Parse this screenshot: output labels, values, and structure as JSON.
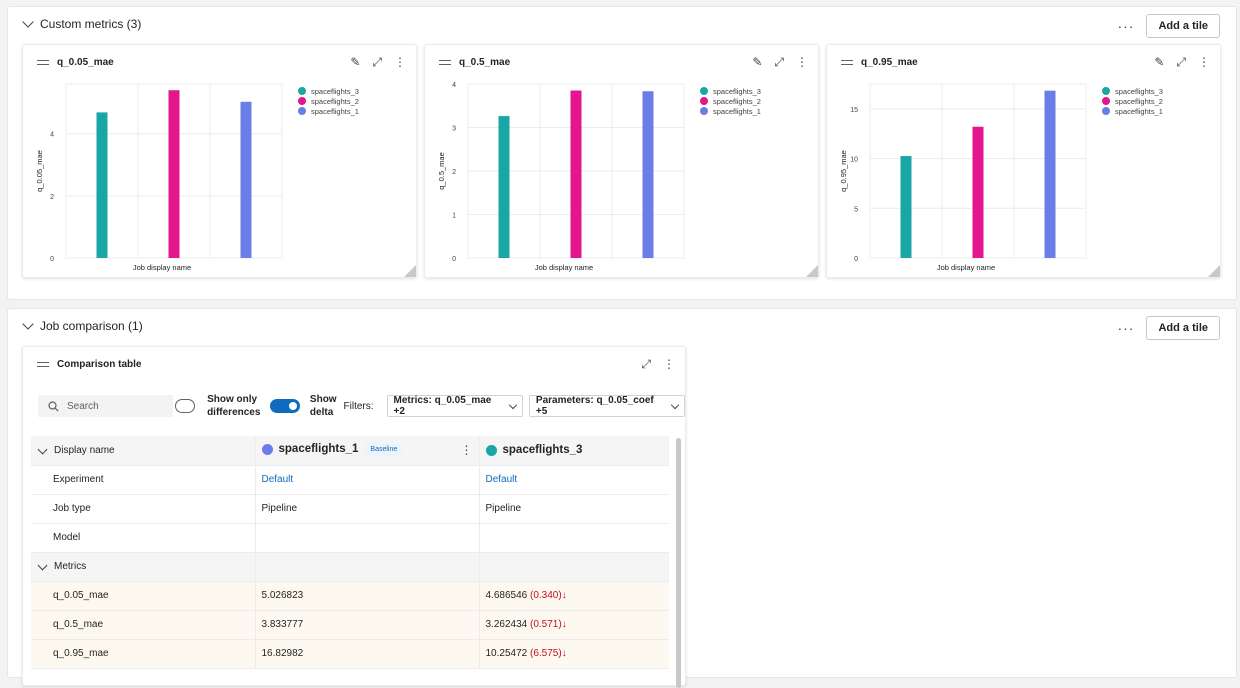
{
  "custom_metrics": {
    "title": "Custom metrics (3)",
    "more": "···",
    "add_tile": "Add a tile"
  },
  "tiles": [
    {
      "title": "q_0.05_mae",
      "chart_data": {
        "type": "bar",
        "title": "q_0.05_mae",
        "xlabel": "Job display name",
        "ylabel": "q_0.05_mae",
        "ylim": [
          0,
          5.6
        ],
        "yticks": [
          "0",
          "2",
          "4"
        ],
        "categories": [
          "spaceflights_3",
          "spaceflights_2",
          "spaceflights_1"
        ],
        "values": [
          4.686546,
          5.4,
          5.026823
        ],
        "colors": [
          "#1aa6a6",
          "#e3168c",
          "#6b7ee8"
        ]
      }
    },
    {
      "title": "q_0.5_mae",
      "chart_data": {
        "type": "bar",
        "title": "q_0.5_mae",
        "xlabel": "Job display name",
        "ylabel": "q_0.5_mae",
        "ylim": [
          0,
          4
        ],
        "yticks": [
          "0",
          "1",
          "2",
          "3",
          "4"
        ],
        "categories": [
          "spaceflights_3",
          "spaceflights_2",
          "spaceflights_1"
        ],
        "values": [
          3.262434,
          3.85,
          3.833777
        ],
        "colors": [
          "#1aa6a6",
          "#e3168c",
          "#6b7ee8"
        ]
      }
    },
    {
      "title": "q_0.95_mae",
      "chart_data": {
        "type": "bar",
        "title": "q_0.95_mae",
        "xlabel": "Job display name",
        "ylabel": "q_0.95_mae",
        "ylim": [
          0,
          17.5
        ],
        "yticks": [
          "0",
          "5",
          "10",
          "15"
        ],
        "categories": [
          "spaceflights_3",
          "spaceflights_2",
          "spaceflights_1"
        ],
        "values": [
          10.25472,
          13.2,
          16.82982
        ],
        "colors": [
          "#1aa6a6",
          "#e3168c",
          "#6b7ee8"
        ]
      }
    }
  ],
  "legend": [
    "spaceflights_3",
    "spaceflights_2",
    "spaceflights_1"
  ],
  "legend_colors": [
    "#1aa6a6",
    "#e3168c",
    "#6b7ee8"
  ],
  "job_comparison": {
    "title": "Job comparison (1)",
    "more": "···",
    "add_tile": "Add a tile"
  },
  "comparison": {
    "title": "Comparison table",
    "search_placeholder": "Search",
    "show_only_differences": "Show only differences",
    "show_delta": "Show delta",
    "filters_label": "Filters:",
    "metrics_filter": "Metrics: q_0.05_mae +2",
    "parameters_filter": "Parameters: q_0.05_coef +5",
    "header": {
      "label": "Display name",
      "run1": "spaceflights_1",
      "run1_badge": "Baseline",
      "run1_color": "#6b7ee8",
      "run2": "spaceflights_3",
      "run2_color": "#1aa6a6"
    },
    "rows": {
      "experiment": {
        "label": "Experiment",
        "v1": "Default",
        "v2": "Default"
      },
      "job_type": {
        "label": "Job type",
        "v1": "Pipeline",
        "v2": "Pipeline"
      },
      "model": {
        "label": "Model",
        "v1": "",
        "v2": ""
      },
      "metrics_group": "Metrics",
      "m1": {
        "label": "q_0.05_mae",
        "v1": "5.026823",
        "v2": "4.686546",
        "d2": "(0.340)"
      },
      "m2": {
        "label": "q_0.5_mae",
        "v1": "3.833777",
        "v2": "3.262434",
        "d2": "(0.571)"
      },
      "m3": {
        "label": "q_0.95_mae",
        "v1": "16.82982",
        "v2": "10.25472",
        "d2": "(6.575)"
      }
    }
  }
}
